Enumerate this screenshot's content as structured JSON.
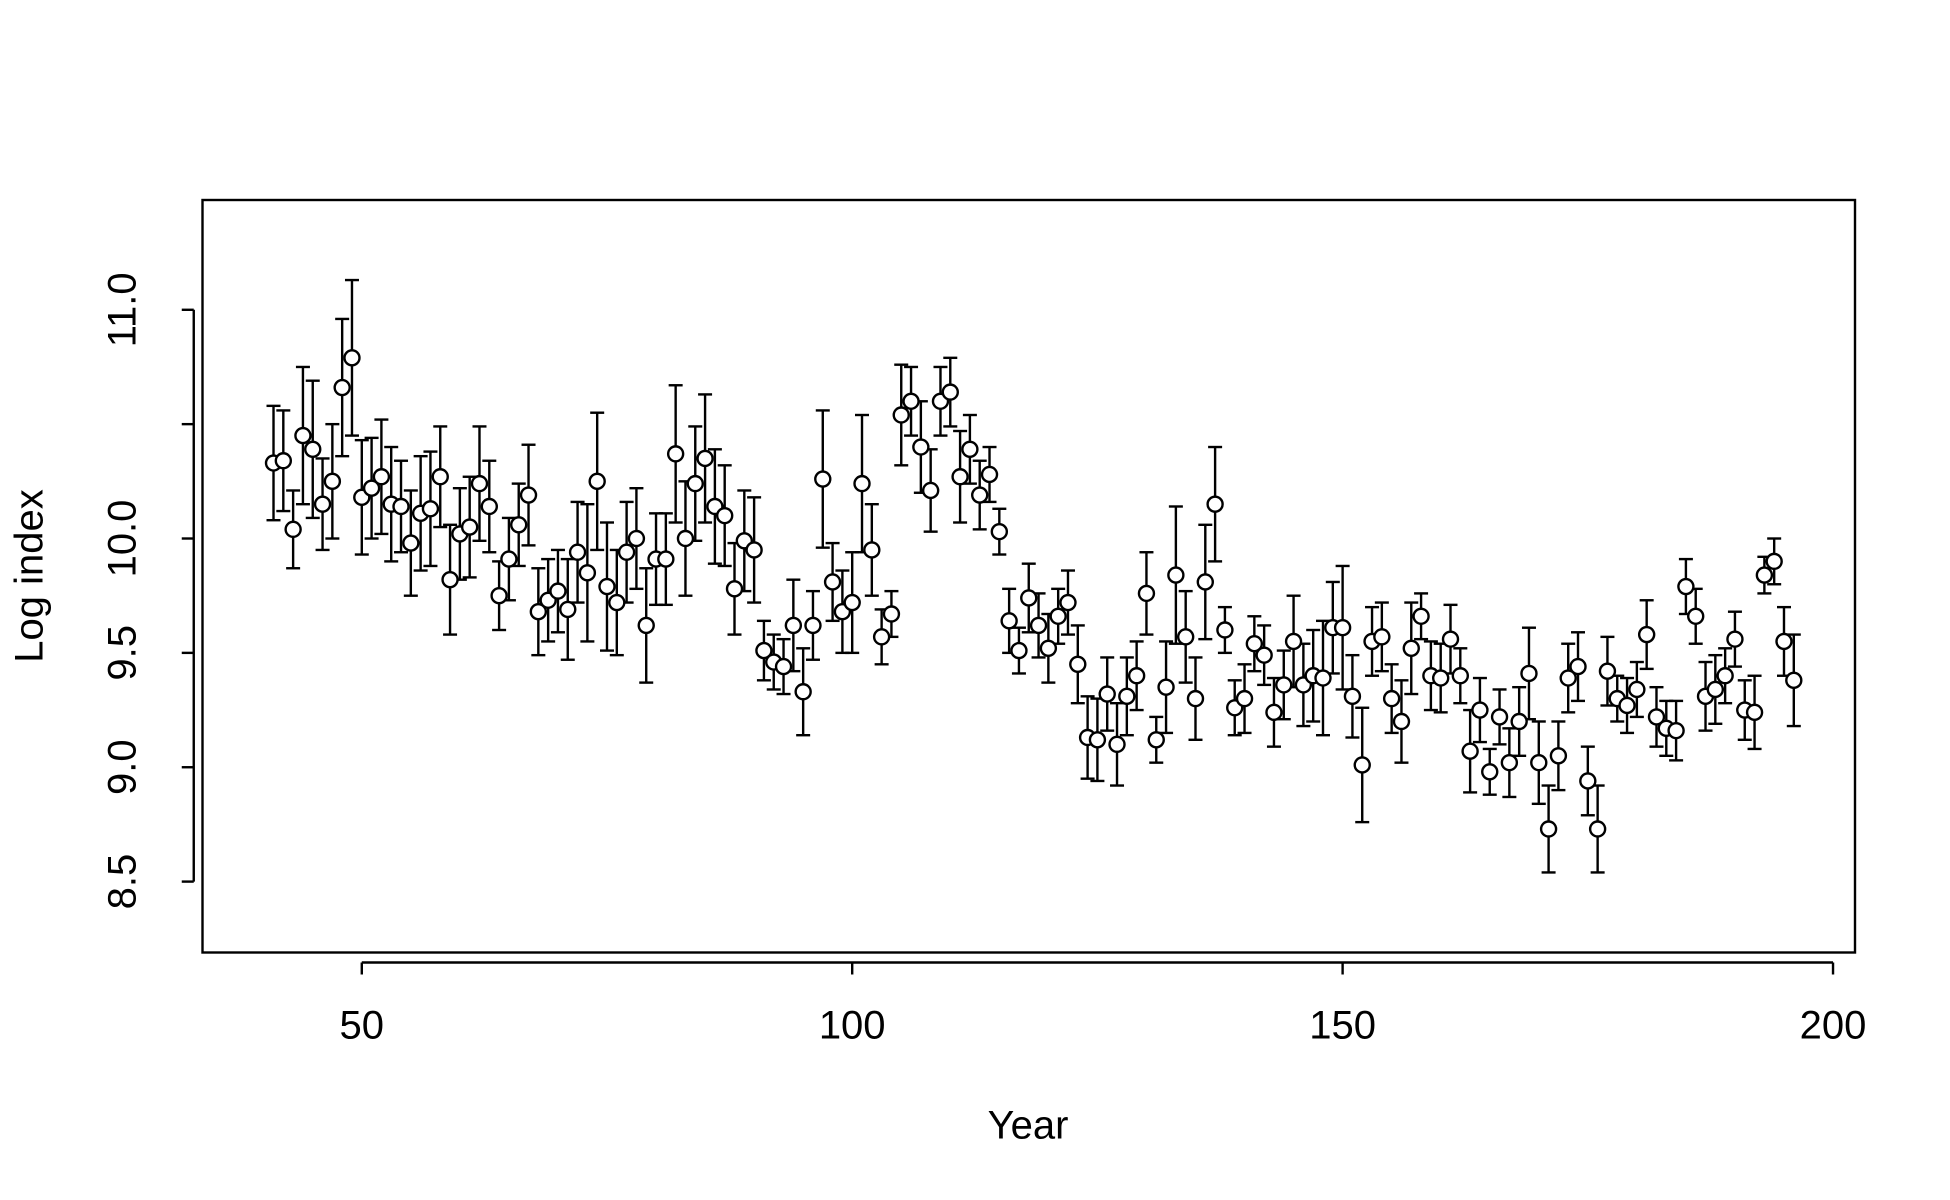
{
  "chart_data": {
    "type": "scatter",
    "x_label": "Year",
    "y_label": "Log index",
    "x": [
      41,
      42,
      43,
      44,
      45,
      46,
      47,
      48,
      49,
      50,
      51,
      52,
      53,
      54,
      55,
      56,
      57,
      58,
      59,
      60,
      61,
      62,
      63,
      64,
      65,
      66,
      67,
      68,
      69,
      70,
      71,
      72,
      73,
      74,
      75,
      76,
      77,
      78,
      79,
      80,
      81,
      82,
      83,
      84,
      85,
      86,
      87,
      88,
      89,
      90,
      91,
      92,
      93,
      94,
      95,
      96,
      97,
      98,
      99,
      100,
      101,
      102,
      103,
      104,
      105,
      106,
      107,
      108,
      109,
      110,
      111,
      112,
      113,
      114,
      115,
      116,
      117,
      118,
      119,
      120,
      121,
      122,
      123,
      124,
      125,
      126,
      127,
      128,
      129,
      130,
      131,
      132,
      133,
      134,
      135,
      136,
      137,
      138,
      139,
      140,
      141,
      142,
      143,
      144,
      145,
      146,
      147,
      148,
      149,
      150,
      151,
      152,
      153,
      154,
      155,
      156,
      157,
      158,
      159,
      160,
      161,
      162,
      163,
      164,
      165,
      166,
      167,
      168,
      169,
      170,
      171,
      172,
      173,
      174,
      175,
      176,
      177,
      178,
      179,
      180,
      181,
      182,
      183,
      184,
      185,
      186,
      187,
      188,
      189,
      190,
      191,
      192,
      193,
      194,
      195,
      196
    ],
    "values": [
      10.33,
      10.34,
      10.04,
      10.45,
      10.39,
      10.15,
      10.25,
      10.66,
      10.79,
      10.18,
      10.22,
      10.27,
      10.15,
      10.14,
      9.98,
      10.11,
      10.13,
      10.27,
      9.82,
      10.02,
      10.05,
      10.24,
      10.14,
      9.75,
      9.91,
      10.06,
      10.19,
      9.68,
      9.73,
      9.77,
      9.69,
      9.94,
      9.85,
      10.25,
      9.79,
      9.72,
      9.94,
      10.0,
      9.62,
      9.91,
      9.91,
      10.37,
      10.0,
      10.24,
      10.35,
      10.14,
      10.1,
      9.78,
      9.99,
      9.95,
      9.51,
      9.46,
      9.44,
      9.62,
      9.33,
      9.62,
      10.26,
      9.81,
      9.68,
      9.72,
      10.24,
      9.95,
      9.57,
      9.67,
      10.54,
      10.6,
      10.4,
      10.21,
      10.6,
      10.64,
      10.27,
      10.39,
      10.19,
      10.28,
      10.03,
      9.64,
      9.51,
      9.74,
      9.62,
      9.52,
      9.66,
      9.72,
      9.45,
      9.13,
      9.12,
      9.32,
      9.1,
      9.31,
      9.4,
      9.76,
      9.12,
      9.35,
      9.84,
      9.57,
      9.3,
      9.81,
      10.15,
      9.6,
      9.26,
      9.3,
      9.54,
      9.49,
      9.24,
      9.36,
      9.55,
      9.36,
      9.4,
      9.39,
      9.61,
      9.61,
      9.31,
      9.01,
      9.55,
      9.57,
      9.3,
      9.2,
      9.52,
      9.66,
      9.4,
      9.39,
      9.56,
      9.4,
      9.07,
      9.25,
      8.98,
      9.22,
      9.02,
      9.2,
      9.41,
      9.02,
      8.73,
      9.05,
      9.39,
      9.44,
      8.94,
      8.73,
      9.42,
      9.3,
      9.27,
      9.34,
      9.58,
      9.22,
      9.17,
      9.16,
      9.79,
      9.66,
      9.31,
      9.34,
      9.4,
      9.56,
      9.25,
      9.24,
      9.84,
      9.9,
      9.55,
      9.38
    ],
    "errors": [
      0.25,
      0.22,
      0.17,
      0.3,
      0.3,
      0.2,
      0.25,
      0.3,
      0.34,
      0.25,
      0.22,
      0.25,
      0.25,
      0.2,
      0.23,
      0.25,
      0.25,
      0.22,
      0.24,
      0.2,
      0.22,
      0.25,
      0.2,
      0.15,
      0.18,
      0.18,
      0.22,
      0.19,
      0.18,
      0.18,
      0.22,
      0.22,
      0.3,
      0.3,
      0.28,
      0.23,
      0.22,
      0.22,
      0.25,
      0.2,
      0.2,
      0.3,
      0.25,
      0.25,
      0.28,
      0.25,
      0.22,
      0.2,
      0.22,
      0.23,
      0.13,
      0.12,
      0.12,
      0.2,
      0.19,
      0.15,
      0.3,
      0.17,
      0.18,
      0.22,
      0.3,
      0.2,
      0.12,
      0.1,
      0.22,
      0.15,
      0.2,
      0.18,
      0.15,
      0.15,
      0.2,
      0.15,
      0.15,
      0.12,
      0.1,
      0.14,
      0.1,
      0.15,
      0.14,
      0.15,
      0.12,
      0.14,
      0.17,
      0.18,
      0.18,
      0.16,
      0.18,
      0.17,
      0.15,
      0.18,
      0.1,
      0.2,
      0.3,
      0.2,
      0.18,
      0.25,
      0.25,
      0.1,
      0.12,
      0.15,
      0.12,
      0.13,
      0.15,
      0.15,
      0.2,
      0.18,
      0.2,
      0.25,
      0.2,
      0.27,
      0.18,
      0.25,
      0.15,
      0.15,
      0.15,
      0.18,
      0.2,
      0.1,
      0.15,
      0.15,
      0.15,
      0.12,
      0.18,
      0.14,
      0.1,
      0.12,
      0.15,
      0.15,
      0.2,
      0.18,
      0.19,
      0.15,
      0.15,
      0.15,
      0.15,
      0.19,
      0.15,
      0.1,
      0.12,
      0.12,
      0.15,
      0.13,
      0.12,
      0.13,
      0.12,
      0.12,
      0.15,
      0.15,
      0.12,
      0.12,
      0.13,
      0.16,
      0.08,
      0.1,
      0.15,
      0.2
    ],
    "xlim": [
      33.76,
      202.24
    ],
    "ylim": [
      8.19,
      11.48
    ],
    "xticks": [
      50,
      100,
      150,
      200
    ],
    "yticks": [
      8.5,
      {
        "value": 9,
        "label": "9.0"
      },
      9.5,
      {
        "value": 10,
        "label": "10.0"
      },
      {
        "value": 10.5,
        "label": null
      },
      {
        "value": 11,
        "label": "11.0"
      }
    ]
  }
}
